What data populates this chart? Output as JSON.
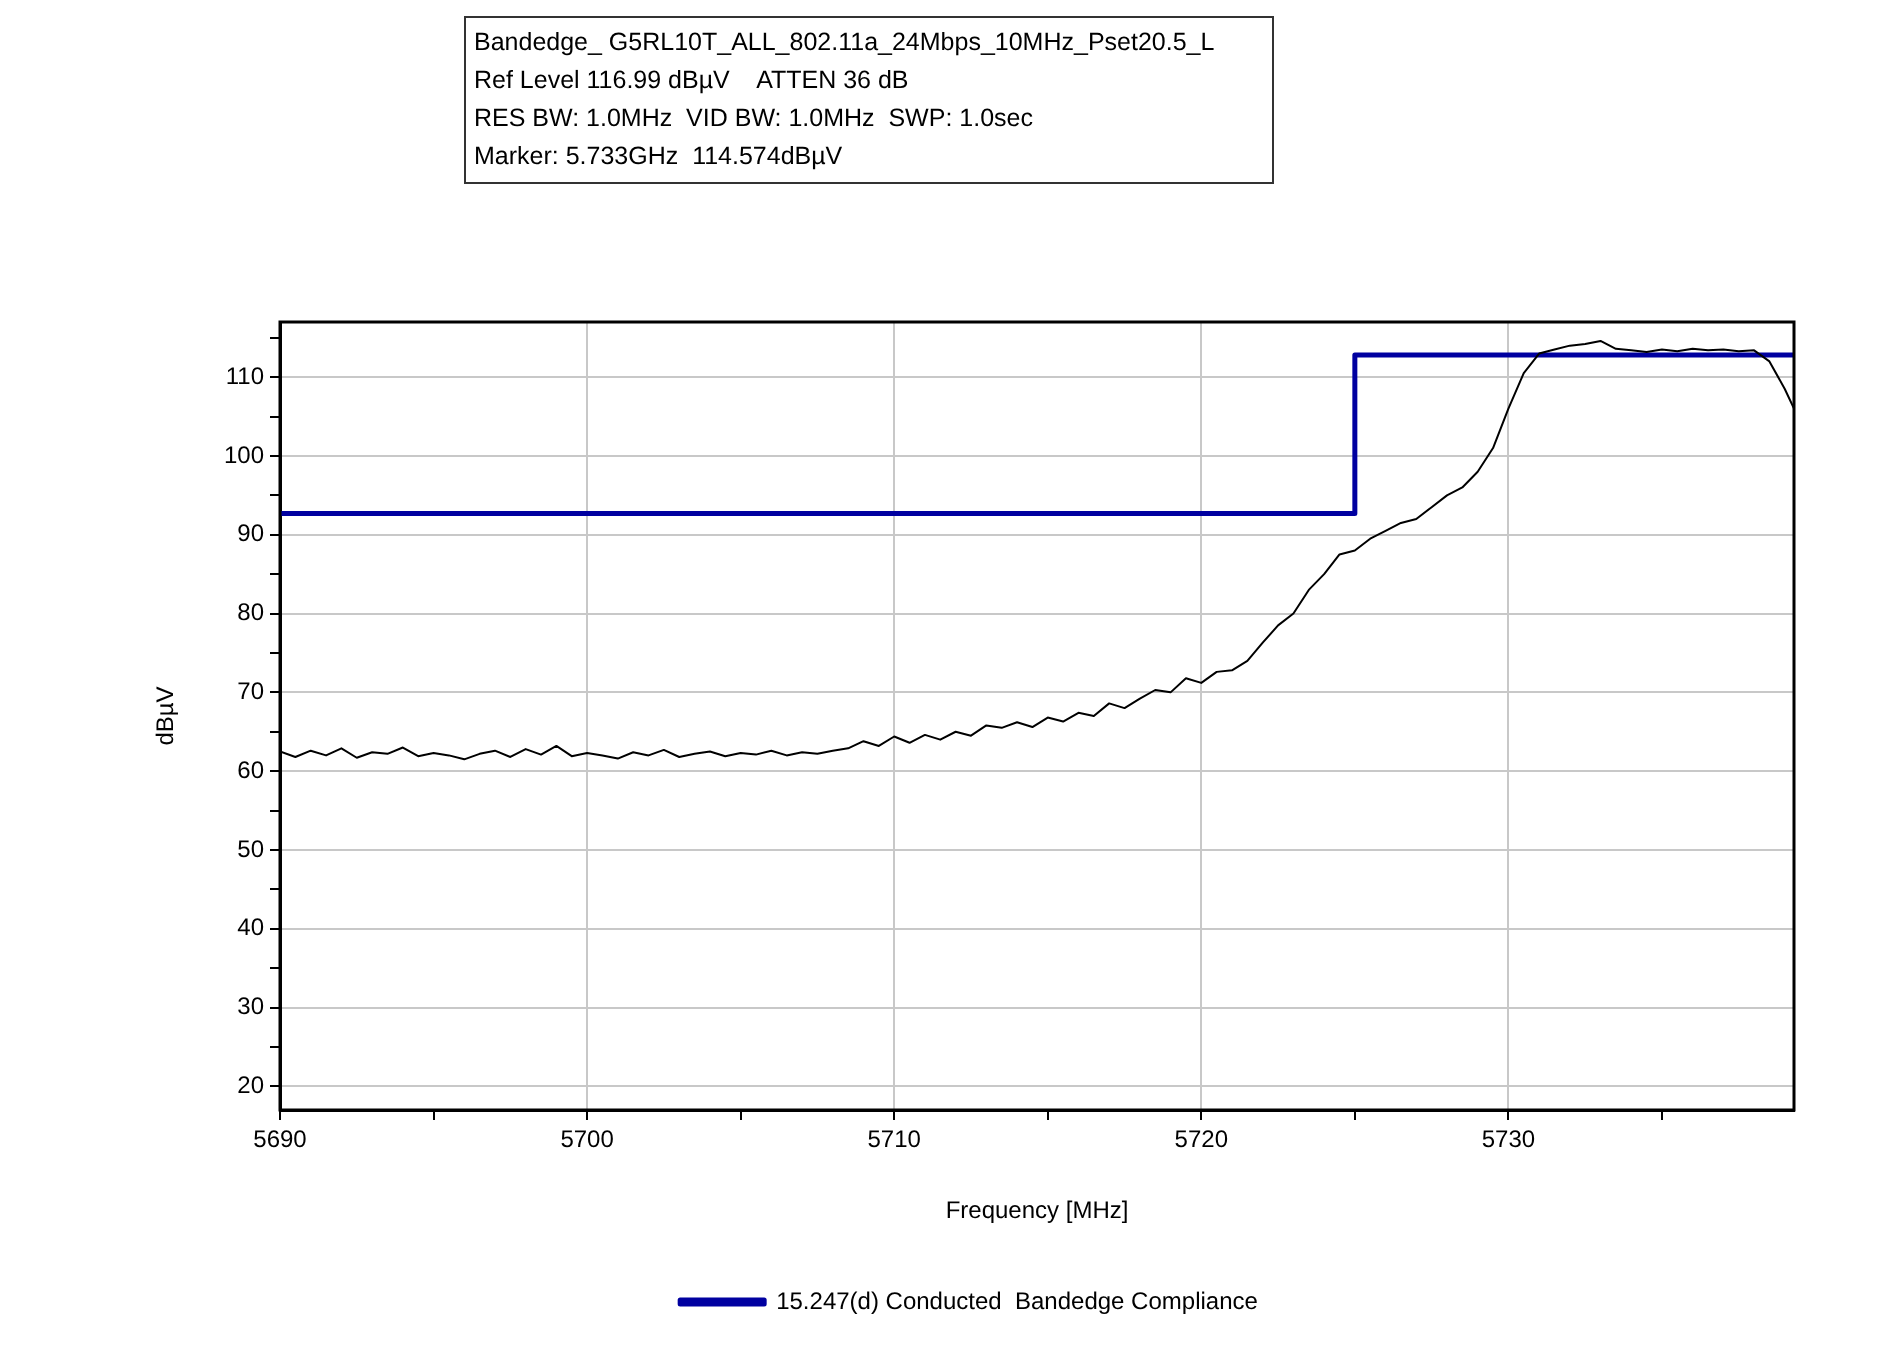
{
  "chart_data": {
    "type": "line",
    "title": "Bandedge_ G5RL10T_ALL_802.11a_24Mbps_10MHz_Pset20.5_L",
    "annotations": [
      "Ref Level 116.99 dBµV    ATTEN 36 dB",
      "RES BW: 1.0MHz  VID BW: 1.0MHz  SWP: 1.0sec",
      "Marker: 5.733GHz  114.574dBµV"
    ],
    "xlabel": "Frequency [MHz]",
    "ylabel": "dBµV",
    "xlim": [
      5690,
      5739.3
    ],
    "ylim": [
      17,
      117
    ],
    "xticks": [
      5690,
      {
        "value": 5695,
        "label": null
      },
      5700,
      {
        "value": 5705,
        "label": null
      },
      5710,
      {
        "value": 5715,
        "label": null
      },
      5720,
      {
        "value": 5725,
        "label": null
      },
      5730,
      {
        "value": 5735,
        "label": null
      }
    ],
    "yticks": [
      20,
      {
        "value": 25,
        "label": null
      },
      30,
      {
        "value": 35,
        "label": null
      },
      40,
      {
        "value": 45,
        "label": null
      },
      50,
      {
        "value": 55,
        "label": null
      },
      60,
      {
        "value": 65,
        "label": null
      },
      70,
      {
        "value": 75,
        "label": null
      },
      80,
      {
        "value": 85,
        "label": null
      },
      90,
      {
        "value": 95,
        "label": null
      },
      100,
      {
        "value": 105,
        "label": null
      },
      110,
      {
        "value": 115,
        "label": null
      }
    ],
    "grid": true,
    "legend": "bottom",
    "marker": "none",
    "line_style": "solid",
    "series": [
      {
        "color": "#000000",
        "x": [
          5690,
          5690.5,
          5691,
          5691.5,
          5692,
          5692.5,
          5693,
          5693.5,
          5694,
          5694.5,
          5695,
          5695.5,
          5696,
          5696.5,
          5697,
          5697.5,
          5698,
          5698.5,
          5699,
          5699.5,
          5700,
          5700.5,
          5701,
          5701.5,
          5702,
          5702.5,
          5703,
          5703.5,
          5704,
          5704.5,
          5705,
          5705.5,
          5706,
          5706.5,
          5707,
          5707.5,
          5708,
          5708.5,
          5709,
          5709.5,
          5710,
          5710.5,
          5711,
          5711.5,
          5712,
          5712.5,
          5713,
          5713.5,
          5714,
          5714.5,
          5715,
          5715.5,
          5716,
          5716.5,
          5717,
          5717.5,
          5718,
          5718.5,
          5719,
          5719.5,
          5720,
          5720.5,
          5721,
          5721.5,
          5722,
          5722.5,
          5723,
          5723.5,
          5724,
          5724.5,
          5725,
          5725.5,
          5726,
          5726.5,
          5727,
          5727.5,
          5728,
          5728.5,
          5729,
          5729.5,
          5730,
          5730.5,
          5731,
          5731.5,
          5732,
          5732.5,
          5733,
          5733.5,
          5734,
          5734.5,
          5735,
          5735.5,
          5736,
          5736.5,
          5737,
          5737.5,
          5738,
          5738.5,
          5739,
          5739.3
        ],
        "values": [
          62.5,
          61.8,
          62.6,
          62.0,
          62.9,
          61.7,
          62.4,
          62.2,
          63.0,
          61.9,
          62.3,
          62.0,
          61.5,
          62.2,
          62.6,
          61.8,
          62.8,
          62.1,
          63.2,
          61.9,
          62.3,
          62.0,
          61.6,
          62.4,
          62.0,
          62.7,
          61.8,
          62.2,
          62.5,
          61.9,
          62.3,
          62.1,
          62.6,
          62.0,
          62.4,
          62.2,
          62.6,
          62.9,
          63.8,
          63.2,
          64.4,
          63.6,
          64.6,
          64.0,
          65.0,
          64.5,
          65.8,
          65.5,
          66.2,
          65.6,
          66.8,
          66.3,
          67.4,
          67.0,
          68.6,
          68.0,
          69.2,
          70.3,
          70.0,
          71.8,
          71.2,
          72.6,
          72.8,
          74.0,
          76.3,
          78.5,
          80.0,
          83.0,
          85.0,
          87.5,
          88.0,
          89.5,
          90.5,
          91.5,
          92.0,
          93.5,
          95.0,
          96.0,
          98.0,
          101.0,
          106.0,
          110.5,
          113.0,
          113.5,
          114.0,
          114.2,
          114.6,
          113.6,
          113.4,
          113.2,
          113.5,
          113.3,
          113.6,
          113.4,
          113.5,
          113.3,
          113.4,
          112.0,
          108.5,
          106.0
        ]
      },
      {
        "name": "15.247(d) Conducted  Bandedge Compliance",
        "color": "#0000a0",
        "x": [
          5690,
          5725,
          5725,
          5739.3
        ],
        "values": [
          92.7,
          92.7,
          112.8,
          112.8
        ]
      }
    ]
  }
}
